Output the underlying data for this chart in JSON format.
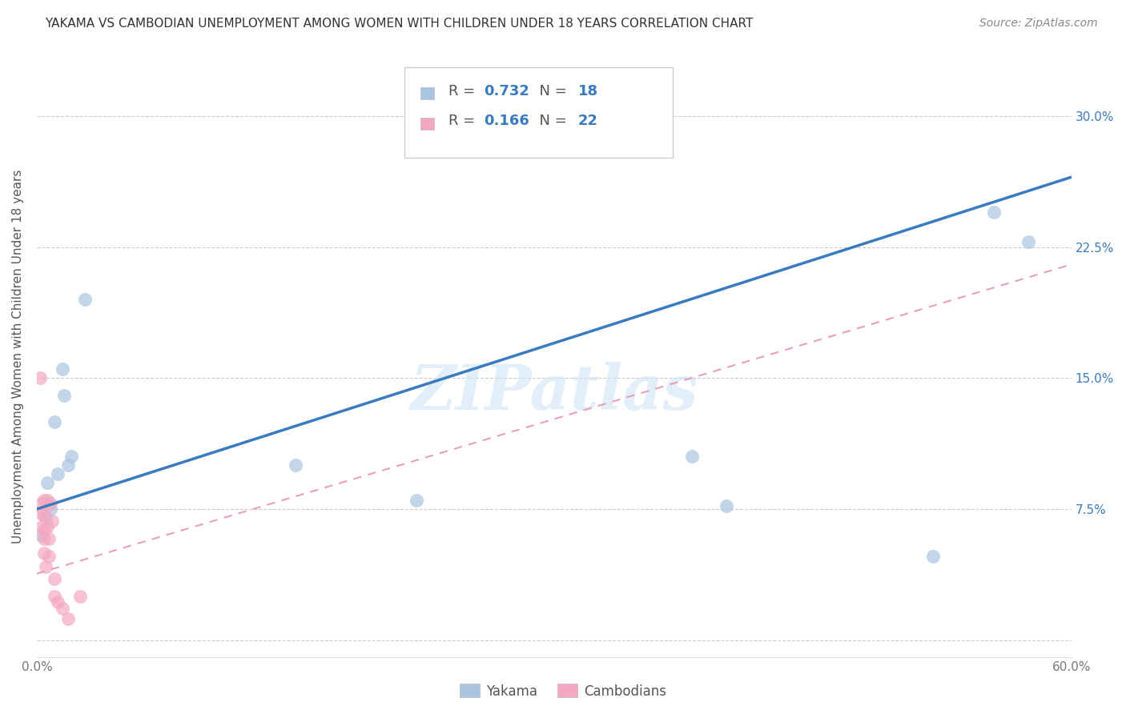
{
  "title": "YAKAMA VS CAMBODIAN UNEMPLOYMENT AMONG WOMEN WITH CHILDREN UNDER 18 YEARS CORRELATION CHART",
  "source": "Source: ZipAtlas.com",
  "ylabel": "Unemployment Among Women with Children Under 18 years",
  "xlim": [
    0.0,
    0.6
  ],
  "ylim": [
    -0.01,
    0.335
  ],
  "xticks": [
    0.0,
    0.1,
    0.2,
    0.3,
    0.4,
    0.5,
    0.6
  ],
  "xticklabels": [
    "0.0%",
    "",
    "",
    "",
    "",
    "",
    "60.0%"
  ],
  "yticks": [
    0.0,
    0.075,
    0.15,
    0.225,
    0.3
  ],
  "right_yticklabels": [
    "",
    "7.5%",
    "15.0%",
    "22.5%",
    "30.0%"
  ],
  "yakama_x": [
    0.003,
    0.005,
    0.006,
    0.008,
    0.01,
    0.012,
    0.015,
    0.016,
    0.018,
    0.02,
    0.028,
    0.15,
    0.22,
    0.38,
    0.4,
    0.52,
    0.555,
    0.575
  ],
  "yakama_y": [
    0.06,
    0.07,
    0.09,
    0.075,
    0.125,
    0.095,
    0.155,
    0.14,
    0.1,
    0.105,
    0.195,
    0.1,
    0.08,
    0.105,
    0.077,
    0.048,
    0.245,
    0.228
  ],
  "cambodian_x": [
    0.002,
    0.003,
    0.003,
    0.003,
    0.004,
    0.004,
    0.004,
    0.004,
    0.004,
    0.005,
    0.006,
    0.006,
    0.007,
    0.007,
    0.008,
    0.009,
    0.01,
    0.01,
    0.012,
    0.015,
    0.018,
    0.025
  ],
  "cambodian_y": [
    0.15,
    0.078,
    0.072,
    0.065,
    0.08,
    0.072,
    0.063,
    0.058,
    0.05,
    0.042,
    0.08,
    0.065,
    0.058,
    0.048,
    0.078,
    0.068,
    0.035,
    0.025,
    0.022,
    0.018,
    0.012,
    0.025
  ],
  "yakama_R": 0.732,
  "yakama_N": 18,
  "cambodian_R": 0.166,
  "cambodian_N": 22,
  "yakama_color": "#a8c4e0",
  "cambodian_color": "#f4a8c0",
  "yakama_line_color": "#3a7abf",
  "cambodian_line_color": "#e8a0b8",
  "yakama_line_x0": 0.0,
  "yakama_line_y0": 0.075,
  "yakama_line_x1": 0.6,
  "yakama_line_y1": 0.265,
  "cambodian_line_x0": 0.0,
  "cambodian_line_y0": 0.038,
  "cambodian_line_x1": 0.6,
  "cambodian_line_y1": 0.215,
  "watermark": "ZIPatlas",
  "grid_color": "#cccccc",
  "title_fontsize": 11,
  "source_fontsize": 10,
  "tick_fontsize": 11,
  "ylabel_fontsize": 11
}
